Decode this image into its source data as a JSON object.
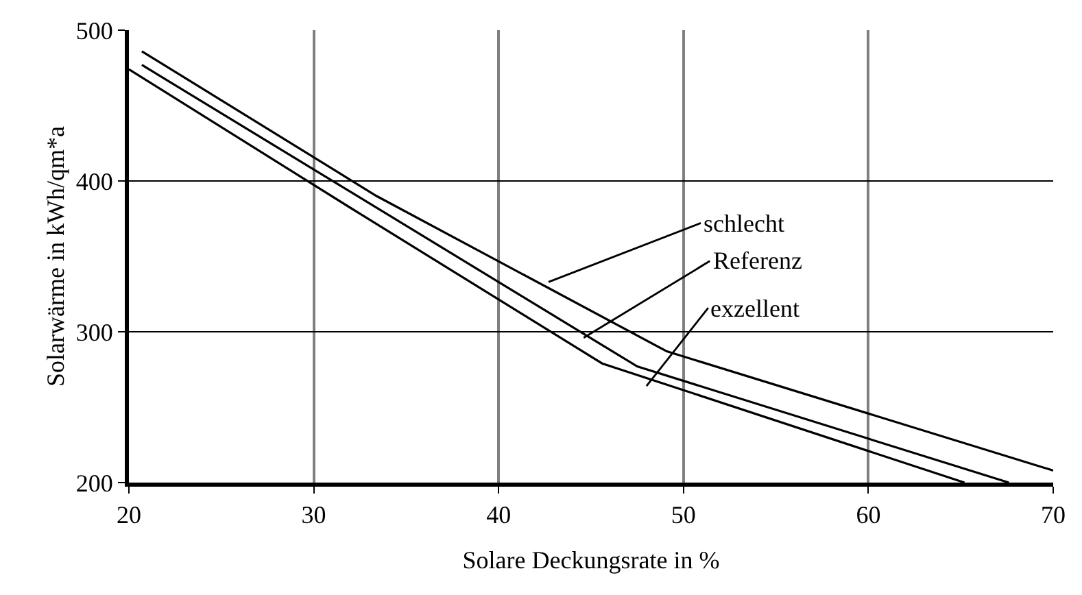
{
  "chart_data": {
    "type": "line",
    "xlabel": "Solare Deckungsrate in %",
    "ylabel": "Solarwärme in kWh/qm*a",
    "xlim": [
      20,
      70
    ],
    "xticks": [
      20,
      30,
      40,
      50,
      60,
      70
    ],
    "ylim": [
      200,
      500
    ],
    "yticks": [
      200,
      300,
      400,
      500
    ],
    "grid": true,
    "marker": "none",
    "line_style": "solid",
    "series": [
      {
        "color": "#000000",
        "x": [
          20.7,
          33.4,
          49.1,
          70
        ],
        "values": [
          486,
          390,
          287,
          208
        ]
      },
      {
        "color": "#000000",
        "x": [
          20.7,
          47.5,
          67.6
        ],
        "values": [
          477,
          277,
          200
        ]
      },
      {
        "color": "#000000",
        "x": [
          20,
          32.4,
          45.6,
          65.2
        ],
        "values": [
          474,
          379,
          279,
          200
        ]
      }
    ],
    "annotations": [
      {
        "text": "schlecht",
        "x": 42.7,
        "y": 333
      },
      {
        "text": "Referenz",
        "x": 44.6,
        "y": 296
      },
      {
        "text": "exzellent",
        "x": 48.0,
        "y": 264
      }
    ]
  }
}
